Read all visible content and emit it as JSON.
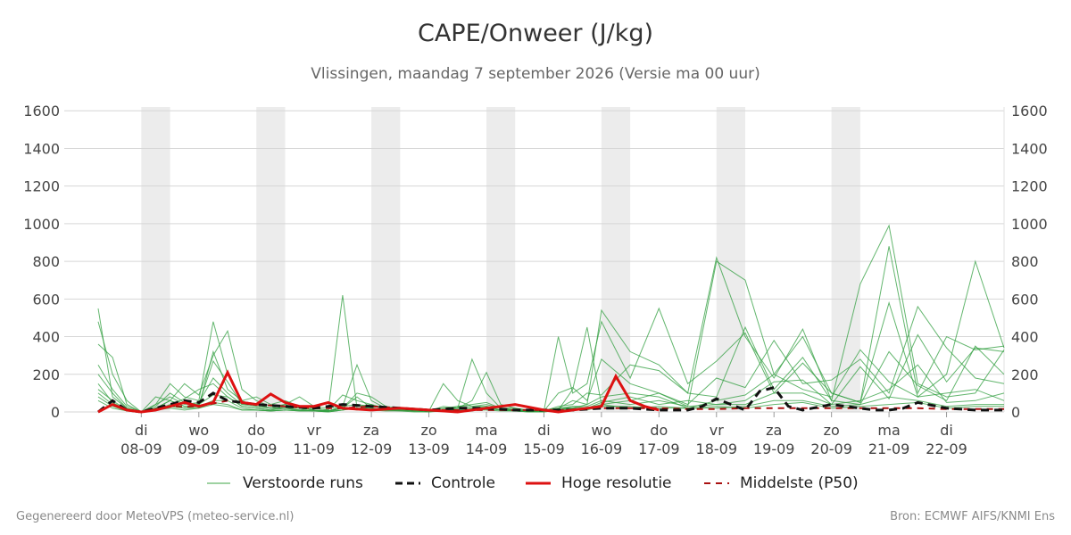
{
  "header": {
    "title": "CAPE/Onweer (J/kg)",
    "subtitle": "Vlissingen, maandag  7 september 2026 (Versie ma 00 uur)"
  },
  "legend": [
    {
      "label": "Verstoorde runs",
      "color": "#3ea646",
      "style": "thin"
    },
    {
      "label": "Controle",
      "color": "#111111",
      "style": "dashed"
    },
    {
      "label": "Hoge resolutie",
      "color": "#dd1111",
      "style": "solid"
    },
    {
      "label": "Middelste (P50)",
      "color": "#aa1111",
      "style": "dashed-thin"
    }
  ],
  "footer": {
    "left": "Gegenereerd door MeteoVPS (meteo-service.nl)",
    "right": "Bron: ECMWF AIFS/KNMI Ens"
  },
  "chart_data": {
    "type": "line",
    "ylim": [
      0,
      1620
    ],
    "yticks": [
      0,
      200,
      400,
      600,
      800,
      1000,
      1200,
      1400,
      1600
    ],
    "xlim": [
      -0.75,
      15
    ],
    "day_ticks": [
      {
        "day": "di",
        "date": "08-09"
      },
      {
        "day": "wo",
        "date": "09-09"
      },
      {
        "day": "do",
        "date": "10-09"
      },
      {
        "day": "vr",
        "date": "11-09"
      },
      {
        "day": "za",
        "date": "12-09"
      },
      {
        "day": "zo",
        "date": "13-09"
      },
      {
        "day": "ma",
        "date": "14-09"
      },
      {
        "day": "di",
        "date": "15-09"
      },
      {
        "day": "wo",
        "date": "16-09"
      },
      {
        "day": "do",
        "date": "17-09"
      },
      {
        "day": "vr",
        "date": "18-09"
      },
      {
        "day": "za",
        "date": "19-09"
      },
      {
        "day": "zo",
        "date": "20-09"
      },
      {
        "day": "ma",
        "date": "21-09"
      },
      {
        "day": "di",
        "date": "22-09"
      }
    ],
    "shaded_bands": [
      [
        0,
        0.5
      ],
      [
        2,
        2.5
      ],
      [
        4,
        4.5
      ],
      [
        6,
        6.5
      ],
      [
        8,
        8.5
      ],
      [
        10,
        10.5
      ],
      [
        12,
        12.5
      ]
    ],
    "ensemble_x": [
      -0.75,
      -0.5,
      -0.25,
      0,
      0.25,
      0.5,
      0.75,
      1,
      1.25,
      1.5,
      1.75,
      2,
      2.25,
      2.5,
      2.75,
      3,
      3.25,
      3.5,
      3.75,
      4,
      4.25,
      4.5,
      4.75,
      5,
      5.25,
      5.5,
      5.75,
      6,
      6.25,
      6.5,
      6.75,
      7,
      7.25,
      7.5,
      7.75,
      8,
      8.5,
      9,
      9.5,
      10,
      10.5,
      11,
      11.5,
      12,
      12.5,
      13,
      13.5,
      14,
      14.5,
      15
    ],
    "ensemble": [
      [
        480,
        200,
        60,
        0,
        20,
        60,
        30,
        30,
        320,
        120,
        60,
        30,
        20,
        40,
        20,
        10,
        5,
        20,
        10,
        30,
        20,
        10,
        5,
        10,
        20,
        10,
        5,
        20,
        10,
        5,
        0,
        5,
        10,
        120,
        450,
        40,
        60,
        100,
        30,
        800,
        700,
        200,
        400,
        100,
        50,
        580,
        80,
        200,
        800,
        340
      ],
      [
        550,
        80,
        20,
        0,
        40,
        150,
        80,
        60,
        480,
        200,
        60,
        80,
        40,
        60,
        30,
        20,
        10,
        620,
        20,
        20,
        10,
        10,
        20,
        5,
        150,
        60,
        30,
        30,
        20,
        10,
        5,
        10,
        20,
        20,
        40,
        540,
        320,
        250,
        100,
        820,
        400,
        180,
        440,
        60,
        680,
        990,
        150,
        80,
        100,
        330
      ],
      [
        360,
        290,
        40,
        0,
        80,
        60,
        150,
        90,
        300,
        430,
        120,
        60,
        30,
        40,
        80,
        30,
        20,
        30,
        250,
        60,
        20,
        10,
        10,
        5,
        30,
        20,
        280,
        100,
        20,
        20,
        10,
        5,
        400,
        100,
        150,
        480,
        180,
        550,
        150,
        270,
        420,
        100,
        260,
        100,
        50,
        880,
        100,
        400,
        330,
        350
      ],
      [
        250,
        120,
        30,
        0,
        30,
        100,
        50,
        40,
        270,
        160,
        40,
        30,
        20,
        20,
        10,
        20,
        10,
        90,
        60,
        40,
        10,
        10,
        5,
        10,
        20,
        20,
        60,
        210,
        40,
        20,
        5,
        5,
        100,
        130,
        60,
        280,
        150,
        100,
        40,
        180,
        130,
        380,
        150,
        170,
        280,
        100,
        560,
        340,
        180,
        150
      ],
      [
        120,
        60,
        10,
        0,
        10,
        40,
        70,
        120,
        150,
        80,
        30,
        20,
        10,
        30,
        20,
        10,
        5,
        20,
        100,
        80,
        30,
        20,
        10,
        5,
        10,
        30,
        40,
        50,
        20,
        10,
        5,
        5,
        30,
        40,
        100,
        90,
        250,
        220,
        100,
        80,
        450,
        120,
        290,
        60,
        40,
        320,
        140,
        60,
        350,
        200
      ],
      [
        80,
        30,
        5,
        0,
        20,
        30,
        20,
        30,
        60,
        60,
        20,
        10,
        5,
        10,
        10,
        5,
        5,
        10,
        30,
        40,
        20,
        10,
        5,
        5,
        10,
        20,
        20,
        20,
        10,
        10,
        5,
        5,
        10,
        30,
        20,
        50,
        80,
        40,
        60,
        40,
        60,
        160,
        170,
        40,
        240,
        70,
        410,
        160,
        340,
        320
      ],
      [
        200,
        100,
        20,
        0,
        40,
        80,
        40,
        50,
        180,
        100,
        40,
        40,
        20,
        20,
        20,
        10,
        5,
        30,
        40,
        30,
        20,
        10,
        10,
        5,
        20,
        30,
        30,
        40,
        20,
        10,
        5,
        5,
        20,
        60,
        40,
        80,
        100,
        80,
        20,
        60,
        90,
        200,
        120,
        80,
        330,
        160,
        80,
        100,
        120,
        60
      ],
      [
        150,
        50,
        10,
        0,
        20,
        60,
        30,
        40,
        90,
        80,
        30,
        20,
        10,
        20,
        10,
        5,
        5,
        20,
        80,
        20,
        10,
        10,
        5,
        5,
        10,
        20,
        20,
        30,
        10,
        10,
        5,
        5,
        20,
        30,
        30,
        60,
        40,
        60,
        30,
        40,
        40,
        100,
        100,
        40,
        60,
        120,
        250,
        50,
        60,
        100
      ],
      [
        100,
        40,
        5,
        0,
        10,
        20,
        10,
        20,
        50,
        40,
        10,
        10,
        5,
        10,
        5,
        5,
        0,
        10,
        20,
        10,
        5,
        5,
        0,
        0,
        5,
        10,
        10,
        10,
        5,
        5,
        0,
        0,
        10,
        20,
        10,
        30,
        30,
        20,
        20,
        20,
        30,
        60,
        60,
        30,
        40,
        80,
        60,
        30,
        40,
        40
      ],
      [
        60,
        20,
        5,
        0,
        10,
        30,
        20,
        20,
        40,
        30,
        10,
        10,
        5,
        10,
        5,
        5,
        0,
        10,
        20,
        20,
        10,
        5,
        5,
        0,
        10,
        10,
        10,
        20,
        10,
        5,
        0,
        0,
        10,
        20,
        20,
        40,
        20,
        30,
        20,
        30,
        20,
        40,
        50,
        20,
        30,
        40,
        50,
        20,
        30,
        30
      ]
    ],
    "controle_x": [
      -0.75,
      -0.5,
      -0.25,
      0,
      0.25,
      0.5,
      0.75,
      1,
      1.25,
      1.5,
      2,
      2.5,
      3,
      3.5,
      4,
      4.5,
      5,
      5.5,
      6,
      6.5,
      7,
      7.5,
      8,
      8.5,
      9,
      9.25,
      9.5,
      9.75,
      10,
      10.25,
      10.5,
      10.75,
      11,
      11.25,
      11.5,
      12,
      12.5,
      12.75,
      13,
      13.25,
      13.5,
      14,
      14.5,
      15
    ],
    "controle": [
      0,
      60,
      10,
      0,
      20,
      40,
      60,
      50,
      100,
      60,
      40,
      30,
      20,
      40,
      30,
      20,
      10,
      20,
      20,
      10,
      10,
      10,
      20,
      20,
      10,
      10,
      10,
      30,
      70,
      40,
      10,
      110,
      130,
      30,
      10,
      40,
      20,
      10,
      10,
      20,
      50,
      20,
      10,
      10
    ],
    "hoge_resolutie_x": [
      -0.75,
      -0.5,
      -0.25,
      0,
      0.25,
      0.5,
      0.75,
      1,
      1.25,
      1.5,
      1.75,
      2,
      2.25,
      2.5,
      2.75,
      3,
      3.25,
      3.5,
      4,
      4.5,
      5,
      5.5,
      6,
      6.5,
      7,
      7.25,
      7.5,
      7.75,
      8,
      8.25,
      8.5,
      8.75,
      9
    ],
    "hoge_resolutie": [
      0,
      40,
      10,
      0,
      10,
      30,
      50,
      30,
      50,
      210,
      50,
      40,
      95,
      50,
      30,
      30,
      50,
      20,
      10,
      20,
      10,
      0,
      20,
      40,
      10,
      0,
      10,
      20,
      30,
      190,
      60,
      30,
      10
    ],
    "p50_x": [
      -0.75,
      -0.5,
      -0.25,
      0,
      0.5,
      1,
      1.5,
      2,
      2.5,
      3,
      3.5,
      4,
      4.5,
      5,
      5.5,
      6,
      6.5,
      7,
      7.5,
      8,
      8.5,
      9,
      9.5,
      10,
      10.5,
      11,
      11.5,
      12,
      12.5,
      13,
      13.5,
      14,
      14.5,
      15
    ],
    "p50": [
      0,
      40,
      10,
      0,
      30,
      30,
      60,
      40,
      30,
      20,
      20,
      30,
      20,
      10,
      10,
      10,
      10,
      10,
      10,
      20,
      20,
      20,
      15,
      15,
      20,
      20,
      20,
      20,
      20,
      20,
      20,
      15,
      15,
      15
    ]
  }
}
